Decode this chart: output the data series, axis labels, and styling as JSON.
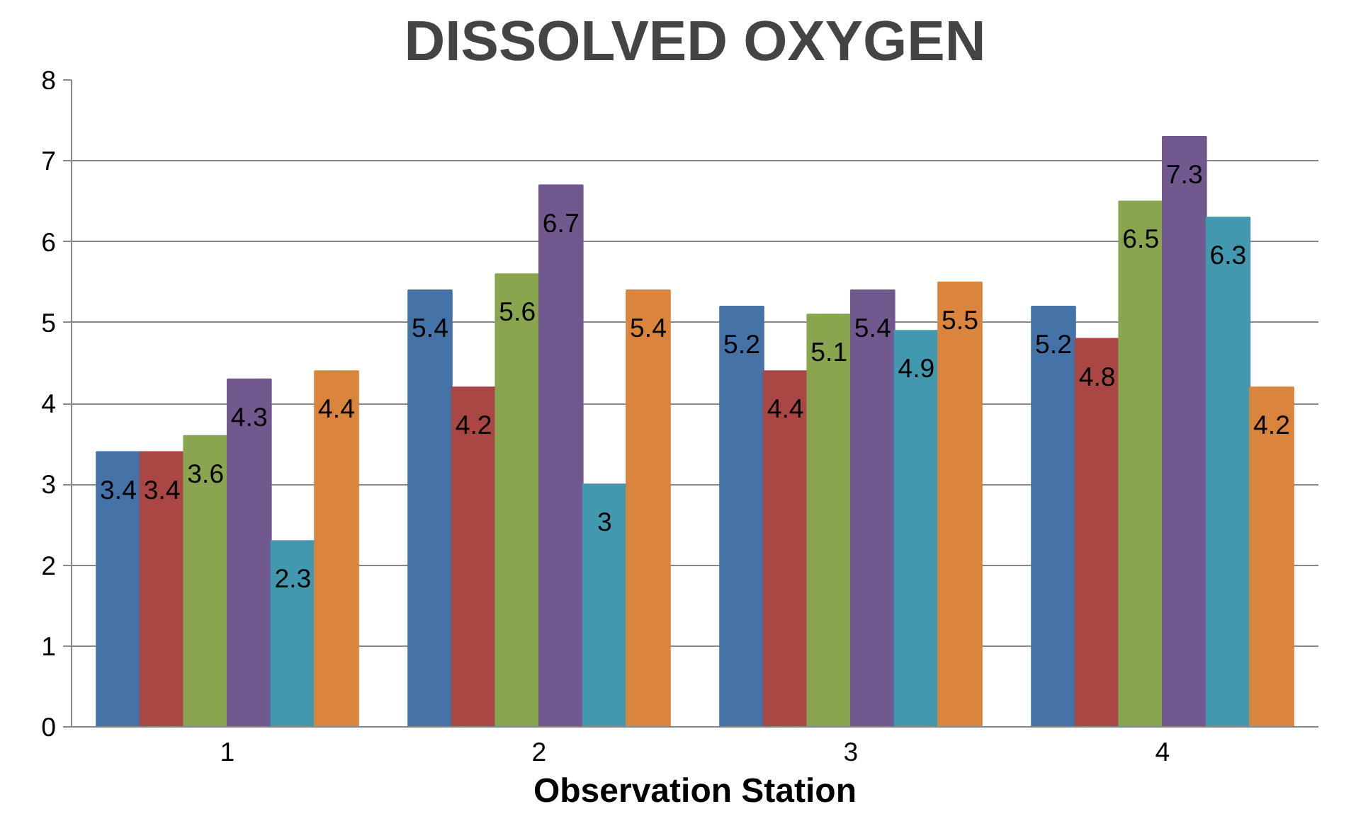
{
  "chart_data": {
    "type": "bar",
    "title": "DISSOLVED OXYGEN",
    "xlabel": "Observation Station",
    "categories": [
      "1",
      "2",
      "3",
      "4"
    ],
    "series": [
      {
        "color": "#4572a7",
        "values": [
          3.4,
          5.4,
          5.2,
          5.2
        ]
      },
      {
        "color": "#aa4643",
        "values": [
          3.4,
          4.2,
          4.4,
          4.8
        ]
      },
      {
        "color": "#89a54e",
        "values": [
          3.6,
          5.6,
          5.1,
          6.5
        ]
      },
      {
        "color": "#71588f",
        "values": [
          4.3,
          6.7,
          5.4,
          7.3
        ]
      },
      {
        "color": "#4198af",
        "values": [
          2.3,
          3,
          4.9,
          6.3
        ]
      },
      {
        "color": "#db843d",
        "values": [
          4.4,
          5.4,
          5.5,
          4.2
        ]
      }
    ],
    "ylim": [
      0,
      8
    ],
    "yticks": [
      0,
      1,
      2,
      3,
      4,
      5,
      6,
      7,
      8
    ],
    "grid": "y",
    "data_labels": true
  }
}
